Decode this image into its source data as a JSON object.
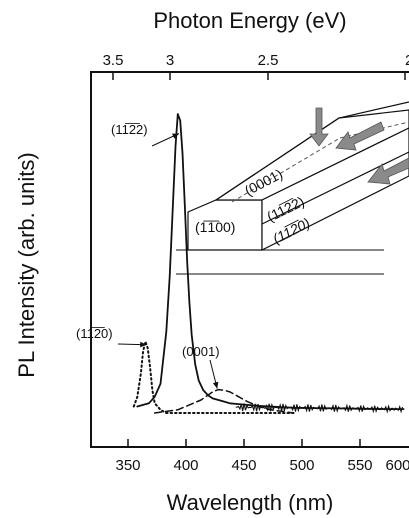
{
  "chart_data": {
    "type": "line",
    "xlabel": "Wavelength (nm)",
    "ylabel": "PL Intensity (arb. units)",
    "top_axis_label": "Photon Energy (eV)",
    "xlim": [
      325,
      610
    ],
    "ylim": [
      0,
      1.0
    ],
    "x_ticks": [
      "350",
      "400",
      "450",
      "500",
      "550",
      "600"
    ],
    "top_ticks": [
      "3.5",
      "3",
      "2.5",
      "2"
    ],
    "series": [
      {
        "name": "(11-22)",
        "style": "solid",
        "x": [
          365,
          370,
          375,
          380,
          385,
          390,
          393,
          396,
          398,
          400,
          402,
          404,
          406,
          408,
          410,
          412,
          415,
          418,
          422,
          426,
          430,
          435,
          440,
          445,
          450,
          460,
          470,
          480,
          490,
          500,
          520,
          540,
          560,
          580,
          595
        ],
        "y": [
          0.02,
          0.025,
          0.03,
          0.05,
          0.09,
          0.25,
          0.42,
          0.66,
          0.82,
          0.92,
          0.9,
          0.8,
          0.64,
          0.47,
          0.34,
          0.24,
          0.15,
          0.1,
          0.07,
          0.055,
          0.045,
          0.04,
          0.035,
          0.03,
          0.028,
          0.025,
          0.022,
          0.02,
          0.018,
          0.016,
          0.015,
          0.014,
          0.013,
          0.012,
          0.012
        ]
      },
      {
        "name": "(0001)",
        "style": "dashed",
        "x": [
          380,
          400,
          420,
          430,
          435,
          440,
          445,
          450,
          460,
          470,
          480,
          490,
          500
        ],
        "y": [
          0.0,
          0.01,
          0.04,
          0.065,
          0.072,
          0.07,
          0.065,
          0.055,
          0.035,
          0.02,
          0.01,
          0.005,
          0.0
        ]
      },
      {
        "name": "(11-20)",
        "style": "dotted",
        "x": [
          362,
          365,
          368,
          370,
          372,
          374,
          376,
          378,
          380,
          385,
          390,
          400,
          420,
          450,
          500
        ],
        "y": [
          0.02,
          0.05,
          0.12,
          0.19,
          0.22,
          0.2,
          0.14,
          0.07,
          0.03,
          0.01,
          0.0,
          0.0,
          0.0,
          0.0,
          0.0
        ]
      }
    ],
    "annotations": [
      {
        "text": "(11̅2̅2)",
        "target_x": 401,
        "target_y": 0.86
      },
      {
        "text": "(11̅2̅0)",
        "target_x": 373,
        "target_y": 0.21
      },
      {
        "text": "(0001)",
        "target_x": 434,
        "target_y": 0.075
      }
    ],
    "inset": {
      "facets": [
        "(0001)",
        "(11̅2̅2)",
        "(11̅2̅0)",
        "(1̅1̅00)"
      ]
    }
  }
}
